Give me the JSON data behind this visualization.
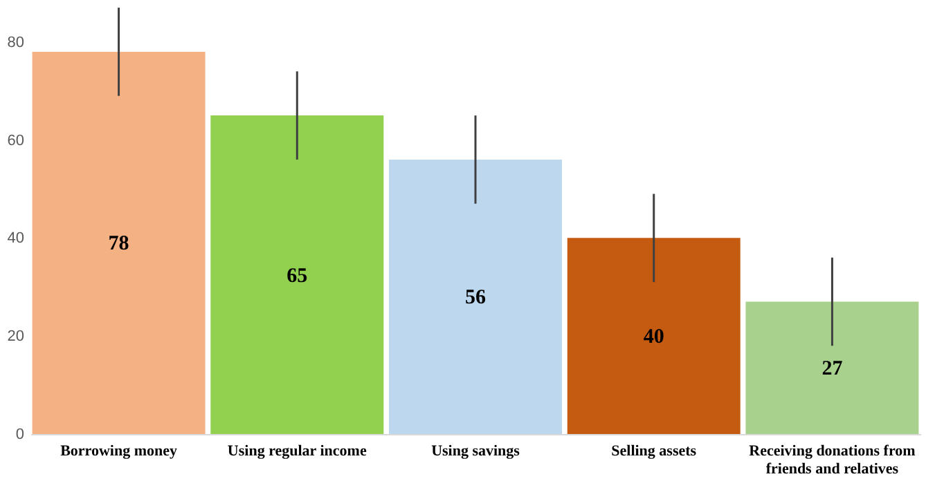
{
  "chart_data": {
    "type": "bar",
    "categories": [
      "Borrowing money",
      "Using regular income",
      "Using savings",
      "Selling assets",
      "Receiving donations from friends and relatives"
    ],
    "values": [
      78,
      65,
      56,
      40,
      27
    ],
    "colors": [
      "#f4b183",
      "#92d050",
      "#bdd7ee",
      "#c55a11",
      "#a9d18e"
    ],
    "errors": [
      9,
      9,
      9,
      9,
      9
    ],
    "ylim": [
      0,
      88
    ],
    "yticks": [
      0,
      20,
      40,
      60,
      80
    ],
    "grid": false,
    "data_labels": true
  }
}
